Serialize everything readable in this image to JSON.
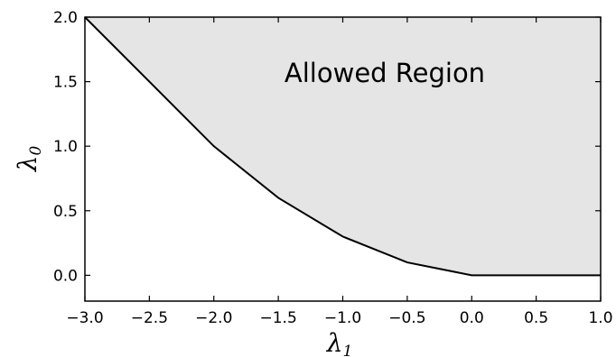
{
  "chart_data": {
    "type": "area",
    "x": [
      -3.0,
      -2.5,
      -2.0,
      -1.5,
      -1.0,
      -0.5,
      0.0,
      0.5,
      1.0
    ],
    "series": [
      {
        "values": [
          2.0,
          1.5,
          1.0,
          0.6,
          0.3,
          0.1,
          0.0,
          0.0,
          0.0
        ]
      }
    ],
    "shaded": "above",
    "xlim": [
      -3.0,
      1.0
    ],
    "ylim": [
      -0.2,
      2.0
    ],
    "xticks": [
      "−3.0",
      "−2.5",
      "−2.0",
      "−1.5",
      "−1.0",
      "−0.5",
      "0.0",
      "0.5",
      "1.0"
    ],
    "yticks": [
      "0.0",
      "0.5",
      "1.0",
      "1.5",
      "2.0"
    ],
    "xlabel": "λ",
    "xlabel_sub": "1",
    "ylabel": "λ",
    "ylabel_sub": "0",
    "annotation": "Allowed Region",
    "fill_color": "#e5e5e5",
    "line_color": "#000000"
  }
}
